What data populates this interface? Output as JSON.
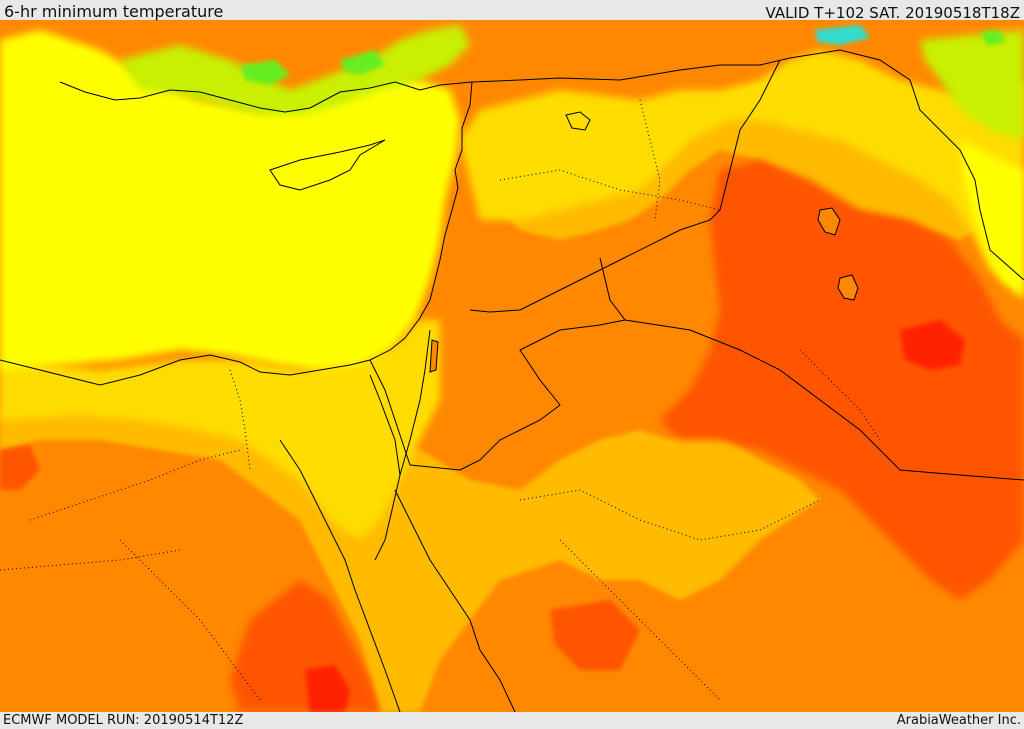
{
  "header": {
    "title": "6-hr minimum temperature",
    "valid": "VALID T+102 SAT. 20190518T18Z"
  },
  "footer": {
    "model_run": "ECMWF MODEL RUN: 20190514T12Z",
    "credit": "ArabiaWeather Inc."
  },
  "map": {
    "variable": "6-hr minimum temperature",
    "palette": {
      "green": "#66ee22",
      "yellow_green": "#c8f000",
      "yellow": "#ffff00",
      "light_orange": "#ffdd00",
      "orange_yellow": "#ffbb00",
      "orange": "#ff8800",
      "dark_orange": "#ff5500",
      "red": "#ff2200",
      "cyan": "#33ddcc",
      "border_color": "#000000"
    }
  }
}
